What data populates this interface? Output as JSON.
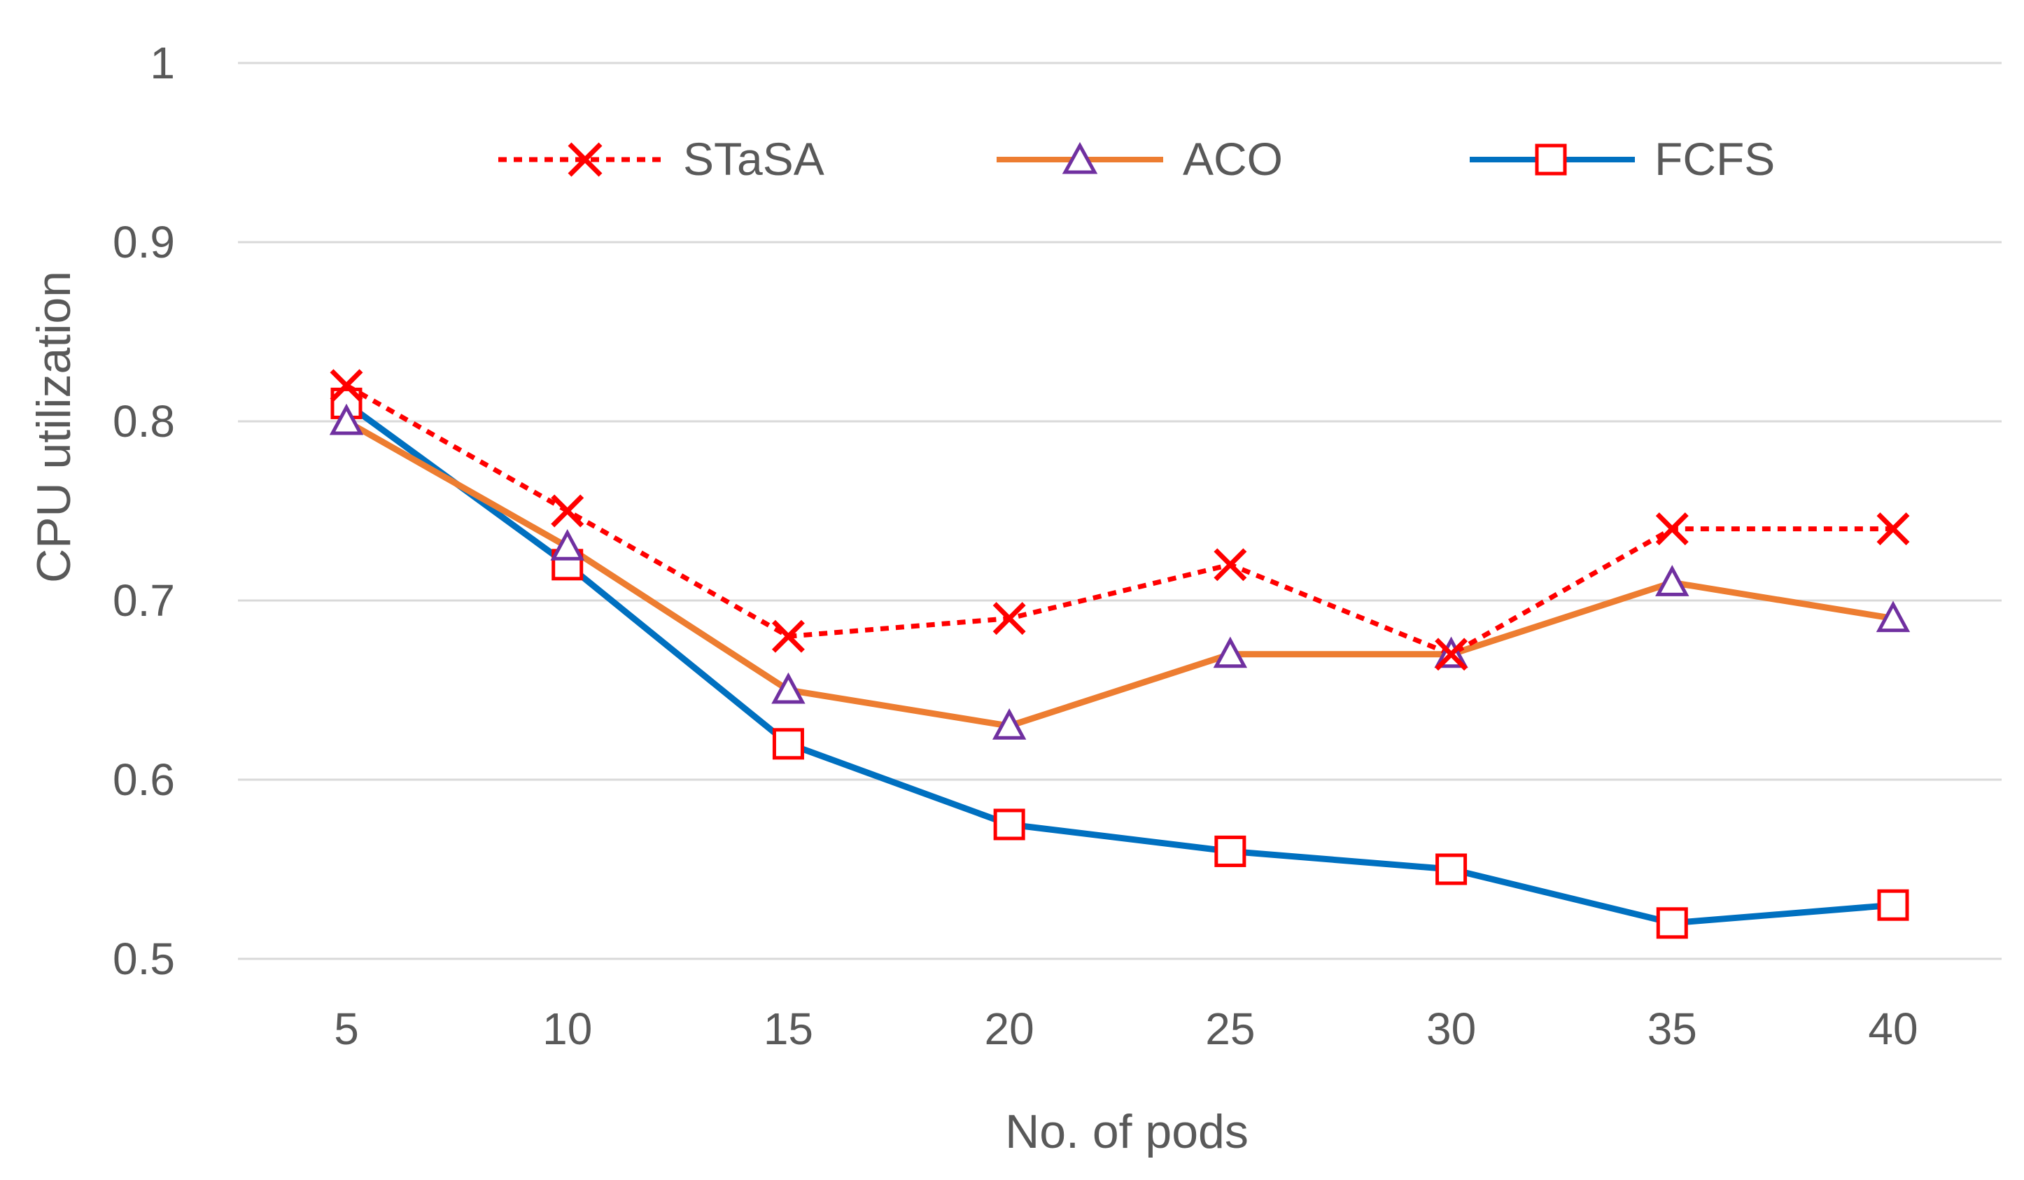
{
  "chart_data": {
    "type": "line",
    "title": "",
    "xlabel": "No. of pods",
    "ylabel": "CPU utilization",
    "categories": [
      "5",
      "10",
      "15",
      "20",
      "25",
      "30",
      "35",
      "40"
    ],
    "ylim": [
      0.5,
      1
    ],
    "yticks": [
      {
        "value": 0.5,
        "label": "0.5"
      },
      {
        "value": 0.6,
        "label": "0.6"
      },
      {
        "value": 0.7,
        "label": "0.7"
      },
      {
        "value": 0.8,
        "label": "0.8"
      },
      {
        "value": 0.9,
        "label": "0.9"
      },
      {
        "value": 1.0,
        "label": "1"
      }
    ],
    "grid": true,
    "legend_position": "top",
    "series": [
      {
        "key": "stasa",
        "name": "STaSA",
        "color": "#ff0000",
        "line": "dotted",
        "marker": "x",
        "marker_color": "#ff0000",
        "values": [
          0.82,
          0.75,
          0.68,
          0.69,
          0.72,
          0.67,
          0.74,
          0.74
        ]
      },
      {
        "key": "aco",
        "name": "ACO",
        "color": "#ed7d31",
        "line": "solid",
        "marker": "triangle",
        "marker_color": "#7030a0",
        "values": [
          0.8,
          0.73,
          0.65,
          0.63,
          0.67,
          0.67,
          0.71,
          0.69
        ]
      },
      {
        "key": "fcfs",
        "name": "FCFS",
        "color": "#0070c0",
        "line": "solid",
        "marker": "square",
        "marker_color": "#ff0000",
        "values": [
          0.81,
          0.72,
          0.62,
          0.575,
          0.56,
          0.55,
          0.52,
          0.53
        ]
      }
    ]
  }
}
